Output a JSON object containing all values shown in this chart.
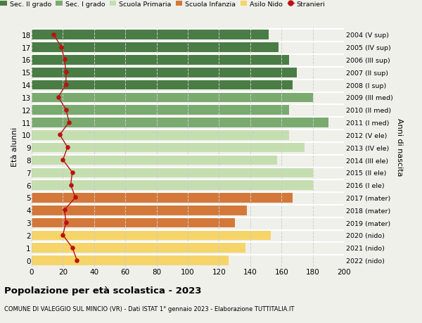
{
  "ages": [
    18,
    17,
    16,
    15,
    14,
    13,
    12,
    11,
    10,
    9,
    8,
    7,
    6,
    5,
    4,
    3,
    2,
    1,
    0
  ],
  "bar_values": [
    152,
    158,
    165,
    170,
    167,
    180,
    165,
    190,
    165,
    175,
    157,
    180,
    180,
    167,
    138,
    130,
    153,
    137,
    126
  ],
  "right_labels": [
    "2004 (V sup)",
    "2005 (IV sup)",
    "2006 (III sup)",
    "2007 (II sup)",
    "2008 (I sup)",
    "2009 (III med)",
    "2010 (II med)",
    "2011 (I med)",
    "2012 (V ele)",
    "2013 (IV ele)",
    "2014 (III ele)",
    "2015 (II ele)",
    "2016 (I ele)",
    "2017 (mater)",
    "2018 (mater)",
    "2019 (mater)",
    "2020 (nido)",
    "2021 (nido)",
    "2022 (nido)"
  ],
  "stranieri_values": [
    14,
    19,
    21,
    22,
    22,
    17,
    22,
    24,
    18,
    23,
    20,
    26,
    25,
    28,
    21,
    22,
    20,
    26,
    29
  ],
  "bar_colors": [
    "#4a7c45",
    "#4a7c45",
    "#4a7c45",
    "#4a7c45",
    "#4a7c45",
    "#7aaa70",
    "#7aaa70",
    "#7aaa70",
    "#c5deb0",
    "#c5deb0",
    "#c5deb0",
    "#c5deb0",
    "#c5deb0",
    "#d4783a",
    "#d4783a",
    "#d4783a",
    "#f5d46a",
    "#f5d46a",
    "#f5d46a"
  ],
  "legend_labels": [
    "Sec. II grado",
    "Sec. I grado",
    "Scuola Primaria",
    "Scuola Infanzia",
    "Asilo Nido",
    "Stranieri"
  ],
  "legend_colors": [
    "#4a7c45",
    "#7aaa70",
    "#c5deb0",
    "#d4783a",
    "#f5d46a",
    "#bb1111"
  ],
  "stranieri_color": "#bb1111",
  "title": "Popolazione per età scolastica - 2023",
  "subtitle": "COMUNE DI VALEGGIO SUL MINCIO (VR) - Dati ISTAT 1° gennaio 2023 - Elaborazione TUTTITALIA.IT",
  "ylabel_left": "Età alunni",
  "ylabel_right": "Anni di nascita",
  "xlim": [
    0,
    200
  ],
  "bg_color": "#f0f0eb",
  "white_sep": "#ffffff"
}
